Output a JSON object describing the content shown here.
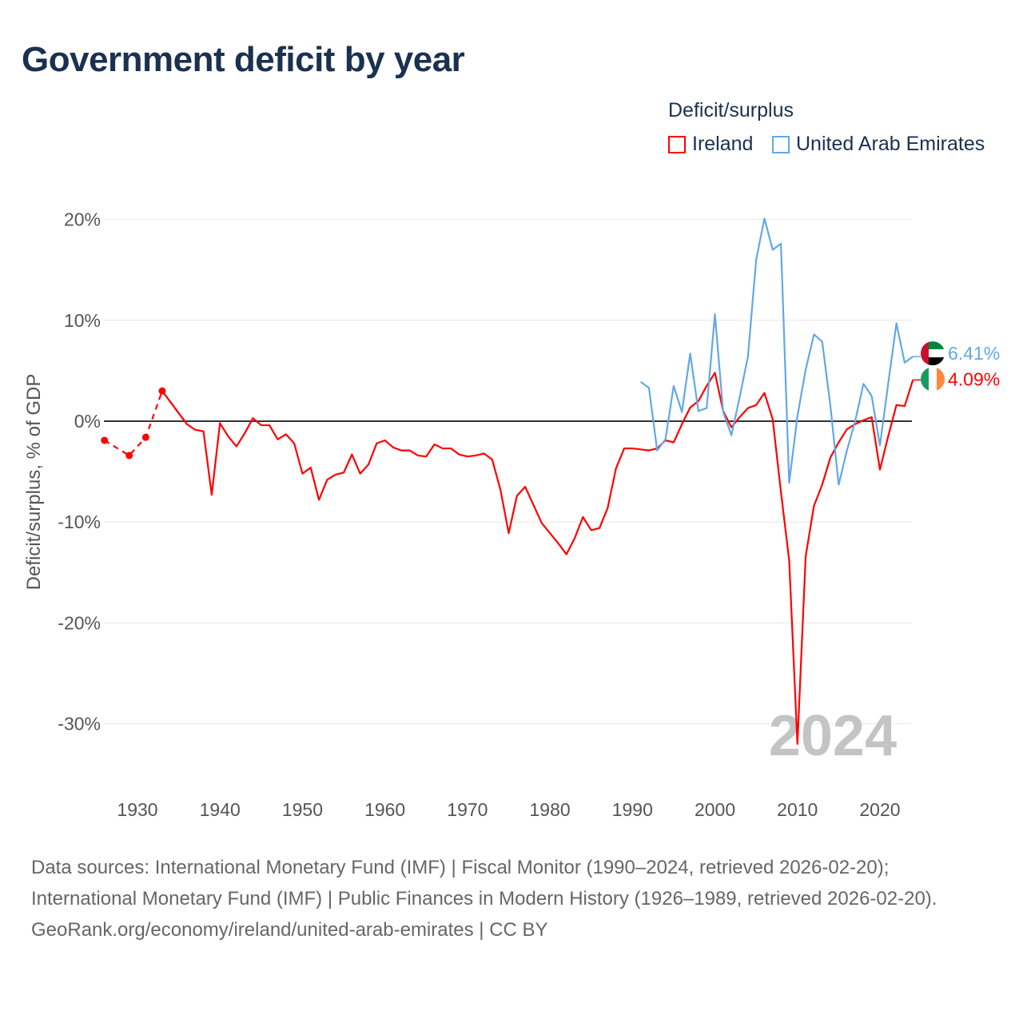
{
  "title": "Government deficit by year",
  "legend": {
    "title": "Deficit/surplus",
    "items": [
      {
        "label": "Ireland"
      },
      {
        "label": "United Arab Emirates"
      }
    ]
  },
  "year_watermark": "2024",
  "colors": {
    "ireland": "#ff0000",
    "uae": "#62a8e8",
    "zero": "#333333",
    "grid": "#e6e6e6"
  },
  "sources": {
    "line1": "Data sources: International Monetary Fund (IMF) | Fiscal Monitor (1990–2024, retrieved 2026-02-20); International Monetary Fund (IMF) | Public Finances in Modern History (1926–1989, retrieved 2026-02-20).",
    "line2": "GeoRank.org/economy/ireland/united-arab-emirates | CC BY"
  },
  "chart_data": {
    "type": "line",
    "title": "Government deficit by year",
    "xlabel": "",
    "ylabel": "Deficit/surplus, % of GDP",
    "xlim": [
      1926,
      2024
    ],
    "ylim": [
      -35,
      23
    ],
    "yticks": [
      20,
      10,
      0,
      -10,
      -20,
      -30
    ],
    "ytick_labels": [
      "20%",
      "10%",
      "0%",
      "-10%",
      "-20%",
      "-30%"
    ],
    "xticks": [
      1930,
      1940,
      1950,
      1960,
      1970,
      1980,
      1990,
      2000,
      2010,
      2020
    ],
    "xtick_labels": [
      "1930",
      "1940",
      "1950",
      "1960",
      "1970",
      "1980",
      "1990",
      "2000",
      "2010",
      "2020"
    ],
    "grid": true,
    "legend_position": "top-right",
    "series": [
      {
        "name": "Ireland",
        "color": "#ff0000",
        "end_label": "4.09%",
        "sparse_points": [
          [
            1926,
            -1.9
          ],
          [
            1929,
            -3.4
          ],
          [
            1931,
            -1.6
          ],
          [
            1933,
            3.0
          ]
        ],
        "points": [
          [
            1933,
            3.0
          ],
          [
            1936,
            -0.3
          ],
          [
            1937,
            -0.85
          ],
          [
            1938,
            -1.0
          ],
          [
            1939,
            -7.3
          ],
          [
            1940,
            -0.2
          ],
          [
            1941,
            -1.5
          ],
          [
            1942,
            -2.5
          ],
          [
            1943,
            -1.2
          ],
          [
            1944,
            0.3
          ],
          [
            1945,
            -0.4
          ],
          [
            1946,
            -0.4
          ],
          [
            1947,
            -1.8
          ],
          [
            1948,
            -1.3
          ],
          [
            1949,
            -2.2
          ],
          [
            1950,
            -5.2
          ],
          [
            1951,
            -4.6
          ],
          [
            1952,
            -7.8
          ],
          [
            1953,
            -5.8
          ],
          [
            1954,
            -5.3
          ],
          [
            1955,
            -5.1
          ],
          [
            1956,
            -3.3
          ],
          [
            1957,
            -5.2
          ],
          [
            1958,
            -4.3
          ],
          [
            1959,
            -2.2
          ],
          [
            1960,
            -1.9
          ],
          [
            1961,
            -2.6
          ],
          [
            1962,
            -2.9
          ],
          [
            1963,
            -2.9
          ],
          [
            1964,
            -3.4
          ],
          [
            1965,
            -3.5
          ],
          [
            1966,
            -2.3
          ],
          [
            1967,
            -2.7
          ],
          [
            1968,
            -2.7
          ],
          [
            1969,
            -3.3
          ],
          [
            1970,
            -3.5
          ],
          [
            1971,
            -3.4
          ],
          [
            1972,
            -3.2
          ],
          [
            1973,
            -3.8
          ],
          [
            1974,
            -6.8
          ],
          [
            1975,
            -11.1
          ],
          [
            1976,
            -7.4
          ],
          [
            1977,
            -6.5
          ],
          [
            1978,
            -8.3
          ],
          [
            1979,
            -10.1
          ],
          [
            1980,
            -11.1
          ],
          [
            1981,
            -12.1
          ],
          [
            1982,
            -13.2
          ],
          [
            1983,
            -11.6
          ],
          [
            1984,
            -9.5
          ],
          [
            1985,
            -10.8
          ],
          [
            1986,
            -10.6
          ],
          [
            1987,
            -8.6
          ],
          [
            1988,
            -4.7
          ],
          [
            1989,
            -2.7
          ],
          [
            1990,
            -2.7
          ],
          [
            1991,
            -2.8
          ],
          [
            1992,
            -2.9
          ],
          [
            1993,
            -2.7
          ],
          [
            1994,
            -1.9
          ],
          [
            1995,
            -2.1
          ],
          [
            1996,
            -0.3
          ],
          [
            1997,
            1.35
          ],
          [
            1998,
            2.0
          ],
          [
            1999,
            3.5
          ],
          [
            2000,
            4.8
          ],
          [
            2001,
            1.0
          ],
          [
            2002,
            -0.6
          ],
          [
            2003,
            0.4
          ],
          [
            2004,
            1.3
          ],
          [
            2005,
            1.6
          ],
          [
            2006,
            2.8
          ],
          [
            2007,
            0.2
          ],
          [
            2008,
            -7.0
          ],
          [
            2009,
            -13.8
          ],
          [
            2010,
            -32.0
          ],
          [
            2011,
            -13.4
          ],
          [
            2012,
            -8.4
          ],
          [
            2013,
            -6.3
          ],
          [
            2014,
            -3.6
          ],
          [
            2015,
            -2.1
          ],
          [
            2016,
            -0.8
          ],
          [
            2017,
            -0.3
          ],
          [
            2018,
            0.1
          ],
          [
            2019,
            0.4
          ],
          [
            2020,
            -4.8
          ],
          [
            2021,
            -1.5
          ],
          [
            2022,
            1.6
          ],
          [
            2023,
            1.5
          ],
          [
            2024,
            4.09
          ]
        ]
      },
      {
        "name": "United Arab Emirates",
        "color": "#62a8e8",
        "end_label": "6.41%",
        "points": [
          [
            1991,
            3.9
          ],
          [
            1992,
            3.3
          ],
          [
            1993,
            -2.9
          ],
          [
            1994,
            -1.8
          ],
          [
            1995,
            3.5
          ],
          [
            1996,
            0.9
          ],
          [
            1997,
            6.7
          ],
          [
            1998,
            1.0
          ],
          [
            1999,
            1.3
          ],
          [
            2000,
            10.6
          ],
          [
            2001,
            0.9
          ],
          [
            2002,
            -1.4
          ],
          [
            2003,
            2.4
          ],
          [
            2004,
            6.4
          ],
          [
            2005,
            16.0
          ],
          [
            2006,
            20.1
          ],
          [
            2007,
            17.0
          ],
          [
            2008,
            17.6
          ],
          [
            2009,
            -6.1
          ],
          [
            2010,
            0.5
          ],
          [
            2011,
            5.1
          ],
          [
            2012,
            8.6
          ],
          [
            2013,
            7.9
          ],
          [
            2014,
            1.5
          ],
          [
            2015,
            -6.3
          ],
          [
            2016,
            -2.9
          ],
          [
            2017,
            0.0
          ],
          [
            2018,
            3.7
          ],
          [
            2019,
            2.5
          ],
          [
            2020,
            -2.4
          ],
          [
            2021,
            3.7
          ],
          [
            2022,
            9.7
          ],
          [
            2023,
            5.8
          ],
          [
            2024,
            6.41
          ]
        ]
      }
    ]
  }
}
